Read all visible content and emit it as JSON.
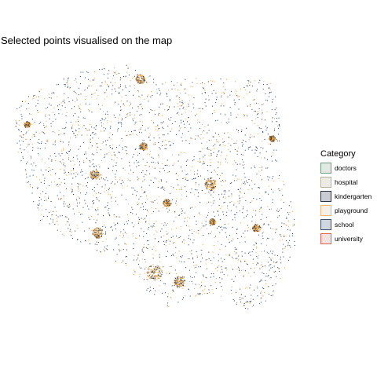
{
  "title": "Selected points visualised on the map",
  "legend": {
    "title": "Category",
    "items": [
      {
        "label": "doctors",
        "border": "#6f9b84",
        "fill": "#e2e8e4"
      },
      {
        "label": "hospital",
        "border": "#b7b09a",
        "fill": "#ecebe6"
      },
      {
        "label": "kindergarten",
        "border": "#2c3340",
        "fill": "#c9ccd2"
      },
      {
        "label": "playground",
        "border": "#e8b97a",
        "fill": "#f4f0ea"
      },
      {
        "label": "school",
        "border": "#3c5068",
        "fill": "#d0d6de"
      },
      {
        "label": "university",
        "border": "#d9675a",
        "fill": "#f1e3e1"
      }
    ]
  },
  "colors": {
    "school": "#1f3f66",
    "playground": "#e8a040",
    "kindergarten": "#222b38",
    "doctors": "#5e8a72"
  }
}
